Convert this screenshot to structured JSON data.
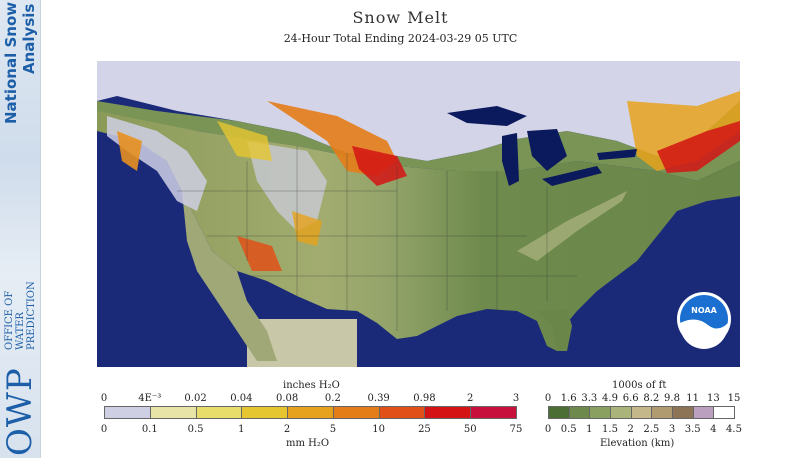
{
  "branding": {
    "nsa_line1": "National Snow",
    "nsa_line2": "Analysis",
    "owp_big": "OWP",
    "owp_line1": "OFFICE OF",
    "owp_line2": "WATER",
    "owp_line3": "PREDICTION"
  },
  "title": "Snow Melt",
  "subtitle": "24-Hour Total Ending 2024-03-29 05 UTC",
  "noaa_logo_text": "NOAA",
  "melt_legend": {
    "top_label": "inches H₂O",
    "bottom_label": "mm H₂O",
    "inch_ticks": [
      "0",
      "4E⁻³",
      "0.02",
      "0.04",
      "0.08",
      "0.2",
      "0.39",
      "0.98",
      "2",
      "3"
    ],
    "mm_ticks": [
      "0",
      "0.1",
      "0.5",
      "1",
      "2",
      "5",
      "10",
      "25",
      "50",
      "75"
    ],
    "colors": [
      "#cfcfe4",
      "#e8e4a8",
      "#e8dc6a",
      "#e6c630",
      "#e6a21c",
      "#e47c18",
      "#e05018",
      "#d41414",
      "#c8103c"
    ]
  },
  "elev_legend": {
    "top_label": "1000s of ft",
    "bottom_label": "Elevation (km)",
    "ft_ticks": [
      "0",
      "1.6",
      "3.3",
      "4.9",
      "6.6",
      "8.2",
      "9.8",
      "11",
      "13",
      "15"
    ],
    "km_ticks": [
      "0",
      "0.5",
      "1",
      "1.5",
      "2",
      "2.5",
      "3",
      "3.5",
      "4",
      "4.5"
    ],
    "colors": [
      "#4a6e34",
      "#6d8a4c",
      "#8aa060",
      "#aab47a",
      "#c4b88a",
      "#b09a70",
      "#8e7456",
      "#bca0c0",
      "#ffffff"
    ]
  }
}
